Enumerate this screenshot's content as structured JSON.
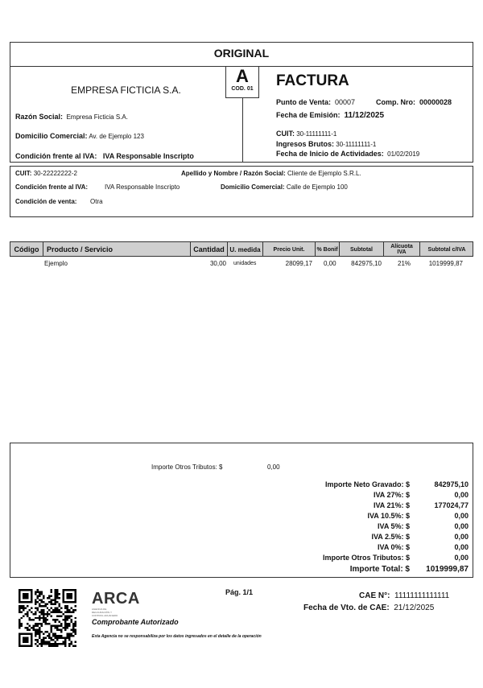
{
  "copy_label": "ORIGINAL",
  "letter": {
    "letter": "A",
    "code": "COD. 01"
  },
  "issuer": {
    "name": "EMPRESA FICTICIA S.A.",
    "razon_label": "Razón Social:",
    "razon": "Empresa Ficticia S.A.",
    "domicilio_label": "Domicilio Comercial:",
    "domicilio": "Av. de Ejemplo 123",
    "iva_label": "Condición frente al IVA:",
    "iva": "IVA Responsable Inscripto"
  },
  "invoice": {
    "title": "FACTURA",
    "pv_label": "Punto de Venta:",
    "pv": "00007",
    "nro_label": "Comp. Nro:",
    "nro": "00000028",
    "fecha_label": "Fecha de Emisión:",
    "fecha": "11/12/2025",
    "cuit_label": "CUIT:",
    "cuit": "30-11111111-1",
    "iibb_label": "Ingresos Brutos:",
    "iibb": "30-11111111-1",
    "inicio_label": "Fecha de Inicio de Actividades:",
    "inicio": "01/02/2019"
  },
  "client": {
    "cuit_label": "CUIT:",
    "cuit": "30-22222222-2",
    "nombre_label": "Apellido y Nombre / Razón Social:",
    "nombre": "Cliente de Ejemplo S.R.L.",
    "iva_label": "Condición frente al IVA:",
    "iva": "IVA Responsable Inscripto",
    "domicilio_label": "Domicilio Comercial:",
    "domicilio": "Calle de Ejemplo 100",
    "venta_label": "Condición de venta:",
    "venta": "Otra"
  },
  "table": {
    "headers": [
      "Código",
      "Producto / Servicio",
      "Cantidad",
      "U. medida",
      "Precio Unit.",
      "% Bonif",
      "Subtotal",
      "Alícuota IVA",
      "Subtotal c/IVA"
    ],
    "rows": [
      {
        "codigo": "",
        "producto": "Ejemplo",
        "cantidad": "30,00",
        "unidad": "unidades",
        "precio": "28099,17",
        "bonif": "0,00",
        "subtotal": "842975,10",
        "alicuota": "21%",
        "subtotal_iva": "1019999,87"
      }
    ]
  },
  "totals": {
    "otros_label": "Importe Otros Tributos: $",
    "otros": "0,00",
    "lines": [
      {
        "label": "Importe Neto Gravado: $",
        "value": "842975,10"
      },
      {
        "label": "IVA 27%: $",
        "value": "0,00"
      },
      {
        "label": "IVA 21%: $",
        "value": "177024,77"
      },
      {
        "label": "IVA 10.5%: $",
        "value": "0,00"
      },
      {
        "label": "IVA 5%: $",
        "value": "0,00"
      },
      {
        "label": "IVA 2.5%: $",
        "value": "0,00"
      },
      {
        "label": "IVA 0%: $",
        "value": "0,00"
      },
      {
        "label": "Importe Otros Tributos: $",
        "value": "0,00"
      }
    ],
    "total_label": "Importe Total: $",
    "total": "1019999,87"
  },
  "footer": {
    "logo": "ARCA",
    "logo_sub": "AGENCIA DE RECAUDACIÓN Y CONTROL ADUANERO",
    "authorized": "Comprobante Autorizado",
    "disclaimer": "Esta Agencia no se responsabiliza por los datos ingresados en el detalle de la operación",
    "page": "Pág. 1/1",
    "cae_label": "CAE N°:",
    "cae": "11111111111111",
    "vto_label": "Fecha de Vto. de CAE:",
    "vto": "21/12/2025"
  }
}
